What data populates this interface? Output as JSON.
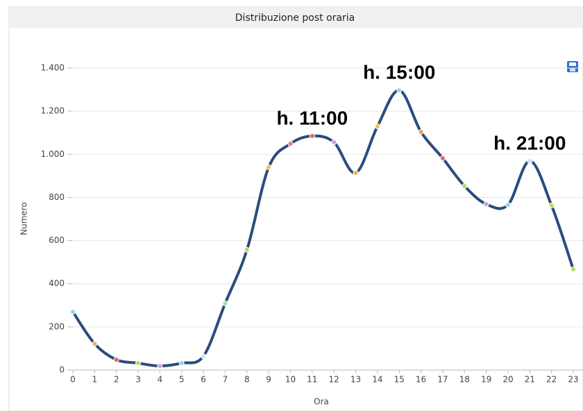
{
  "chart_data": {
    "type": "line",
    "title": "Distribuzione post oraria",
    "x_label": "Ora",
    "y_label": "Numero",
    "x": [
      0,
      1,
      2,
      3,
      4,
      5,
      6,
      7,
      8,
      9,
      10,
      11,
      12,
      13,
      14,
      15,
      16,
      17,
      18,
      19,
      20,
      21,
      22,
      23
    ],
    "series": [
      {
        "name": "Numero",
        "color": "#2b4c7e",
        "values": [
          270,
          122,
          48,
          32,
          19,
          32,
          64,
          309,
          557,
          940,
          1049,
          1085,
          1056,
          914,
          1130,
          1297,
          1104,
          982,
          853,
          769,
          766,
          969,
          763,
          467
        ],
        "point_colors": [
          "#8fd4f0",
          "#f0b060",
          "#e06666",
          "#b8d860",
          "#c8a0e0",
          "#8fd4f0",
          "#c0e8f8",
          "#9fe090",
          "#b8d860",
          "#f0c040",
          "#e08070",
          "#e06666",
          "#c8a0e0",
          "#f0b060",
          "#f0c040",
          "#8fd4f0",
          "#f0a050",
          "#e06666",
          "#b8d860",
          "#c8a0e0",
          "#8fd4f0",
          "#c0e8f8",
          "#b8d860",
          "#b8d860"
        ]
      }
    ],
    "xlim": [
      0,
      23
    ],
    "xticks": [
      0,
      1,
      2,
      3,
      4,
      5,
      6,
      7,
      8,
      9,
      10,
      11,
      12,
      13,
      14,
      15,
      16,
      17,
      18,
      19,
      20,
      21,
      22,
      23
    ],
    "ylim": [
      0,
      1400
    ],
    "yticks": [
      0,
      200,
      400,
      600,
      800,
      {
        "value": 1000,
        "label": "1.000"
      },
      {
        "value": 1200,
        "label": "1.200"
      },
      {
        "value": 1400,
        "label": "1.400"
      }
    ],
    "grid": true,
    "annotations": [
      {
        "text": "h. 11:00",
        "x": 11
      },
      {
        "text": "h. 15:00",
        "x": 15
      },
      {
        "text": "h. 21:00",
        "x": 21
      }
    ]
  }
}
